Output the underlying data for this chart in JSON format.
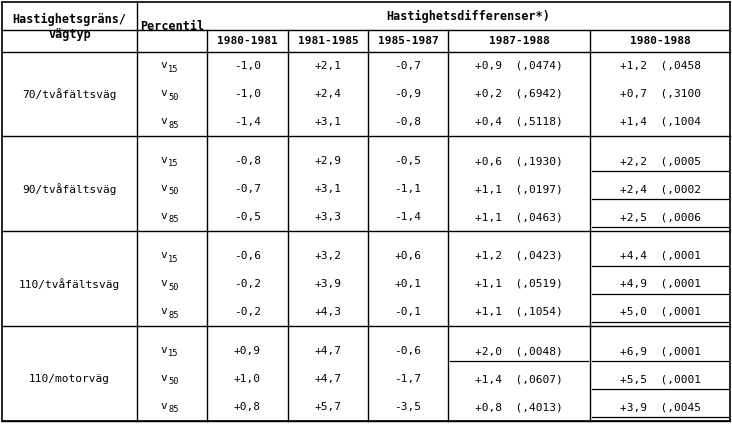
{
  "groups": [
    {
      "label": "70/tvåfältsväg",
      "rows": [
        {
          "percentil": "v_15",
          "c1": "-1,0",
          "c2": "+2,1",
          "c3": "-0,7",
          "c4": "+0,9  (,0474)",
          "c4_ul": false,
          "c5": "+1,2  (,0458",
          "c5_ul": false
        },
        {
          "percentil": "v_50",
          "c1": "-1,0",
          "c2": "+2,4",
          "c3": "-0,9",
          "c4": "+0,2  (,6942)",
          "c4_ul": false,
          "c5": "+0,7  (,3100",
          "c5_ul": false
        },
        {
          "percentil": "v_85",
          "c1": "-1,4",
          "c2": "+3,1",
          "c3": "-0,8",
          "c4": "+0,4  (,5118)",
          "c4_ul": false,
          "c5": "+1,4  (,1004",
          "c5_ul": false
        }
      ]
    },
    {
      "label": "90/tvåfältsväg",
      "rows": [
        {
          "percentil": "v_15",
          "c1": "-0,8",
          "c2": "+2,9",
          "c3": "-0,5",
          "c4": "+0,6  (,1930)",
          "c4_ul": false,
          "c5": "+2,2  (,0005",
          "c5_ul": true
        },
        {
          "percentil": "v_50",
          "c1": "-0,7",
          "c2": "+3,1",
          "c3": "-1,1",
          "c4": "+1,1  (,0197)",
          "c4_ul": false,
          "c5": "+2,4  (,0002",
          "c5_ul": true
        },
        {
          "percentil": "v_85",
          "c1": "-0,5",
          "c2": "+3,3",
          "c3": "-1,4",
          "c4": "+1,1  (,0463)",
          "c4_ul": false,
          "c5": "+2,5  (,0006",
          "c5_ul": true
        }
      ]
    },
    {
      "label": "110/tvåfältsväg",
      "rows": [
        {
          "percentil": "v_15",
          "c1": "-0,6",
          "c2": "+3,2",
          "c3": "+0,6",
          "c4": "+1,2  (,0423)",
          "c4_ul": false,
          "c5": "+4,4  (,0001",
          "c5_ul": true
        },
        {
          "percentil": "v_50",
          "c1": "-0,2",
          "c2": "+3,9",
          "c3": "+0,1",
          "c4": "+1,1  (,0519)",
          "c4_ul": false,
          "c5": "+4,9  (,0001",
          "c5_ul": true
        },
        {
          "percentil": "v_85",
          "c1": "-0,2",
          "c2": "+4,3",
          "c3": "-0,1",
          "c4": "+1,1  (,1054)",
          "c4_ul": false,
          "c5": "+5,0  (,0001",
          "c5_ul": true
        }
      ]
    },
    {
      "label": "110/motorväg",
      "rows": [
        {
          "percentil": "v_15",
          "c1": "+0,9",
          "c2": "+4,7",
          "c3": "-0,6",
          "c4": "+2,0  (,0048)",
          "c4_ul": true,
          "c5": "+6,9  (,0001",
          "c5_ul": true
        },
        {
          "percentil": "v_50",
          "c1": "+1,0",
          "c2": "+4,7",
          "c3": "-1,7",
          "c4": "+1,4  (,0607)",
          "c4_ul": false,
          "c5": "+5,5  (,0001",
          "c5_ul": true
        },
        {
          "percentil": "v_85",
          "c1": "+0,8",
          "c2": "+5,7",
          "c3": "-3,5",
          "c4": "+0,8  (,4013)",
          "c4_ul": false,
          "c5": "+3,9  (,0045",
          "c5_ul": true
        }
      ]
    }
  ],
  "year_cols": [
    "1980-1981",
    "1981-1985",
    "1985-1987",
    "1987-1988",
    "1980-1988"
  ],
  "bg_color": "#ffffff",
  "text_color": "#000000"
}
